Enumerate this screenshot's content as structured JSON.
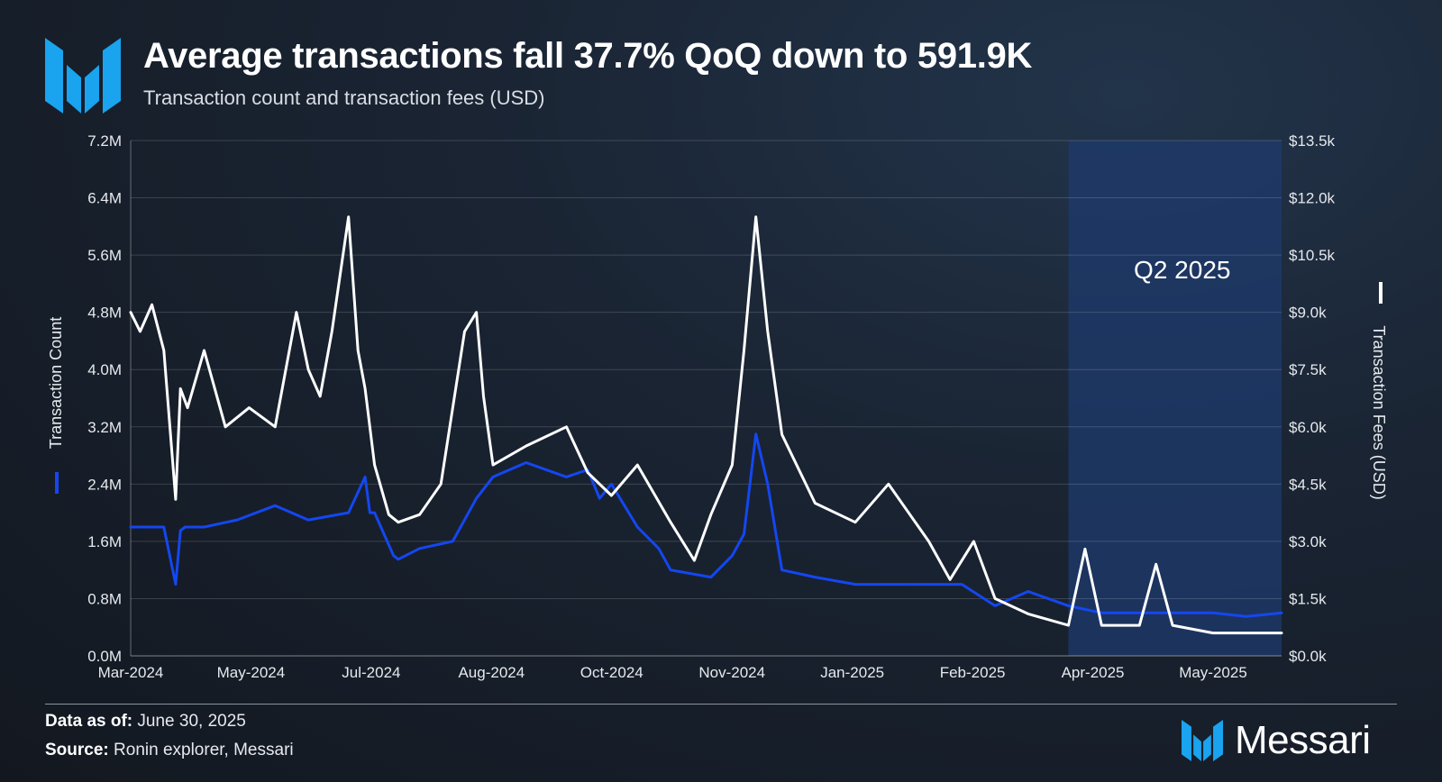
{
  "header": {
    "logo_icon": "messari-m-logo-icon",
    "title": "Average transactions fall 37.7% QoQ down to 591.9K",
    "subtitle": "Transaction count and transaction fees (USD)"
  },
  "footer": {
    "data_as_of_label": "Data as of:",
    "data_as_of_value": "June 30, 2025",
    "source_label": "Source:",
    "source_value": "Ronin explorer, Messari",
    "brand_name": "Messari",
    "brand_icon": "messari-m-logo-icon"
  },
  "colors": {
    "count_series": "#1447f0",
    "fees_series": "#ffffff",
    "brand_blue": "#1aa3ef",
    "highlight": "#1d3b6e"
  },
  "chart_data": {
    "type": "line",
    "title": "Average transactions fall 37.7% QoQ down to 591.9K",
    "subtitle": "Transaction count and transaction fees (USD)",
    "x_ticks": [
      "Mar-2024",
      "May-2024",
      "Jul-2024",
      "Aug-2024",
      "Oct-2024",
      "Nov-2024",
      "Jan-2025",
      "Feb-2025",
      "Apr-2025",
      "May-2025"
    ],
    "x_range": [
      "2024-03-01",
      "2025-06-30"
    ],
    "y_left": {
      "label": "Transaction Count",
      "ticks": [
        "0.0M",
        "0.8M",
        "1.6M",
        "2.4M",
        "3.2M",
        "4.0M",
        "4.8M",
        "5.6M",
        "6.4M",
        "7.2M"
      ],
      "range": [
        0,
        7.2
      ],
      "unit": "M"
    },
    "y_right": {
      "label": "Transaction Fees (USD)",
      "ticks": [
        "$0.0k",
        "$1.5k",
        "$3.0k",
        "$4.5k",
        "$6.0k",
        "$7.5k",
        "$9.0k",
        "$10.5k",
        "$12.0k",
        "$13.5k"
      ],
      "range": [
        0,
        13.5
      ],
      "unit": "$k"
    },
    "grid": true,
    "highlight_region": {
      "label": "Q2 2025",
      "from": "2025-04-01",
      "to": "2025-06-30"
    },
    "series": [
      {
        "name": "Transaction Count",
        "axis": "left",
        "unit": "M",
        "x": [
          "2024-03-01",
          "2024-03-15",
          "2024-03-20",
          "2024-03-22",
          "2024-03-24",
          "2024-04-01",
          "2024-04-15",
          "2024-05-01",
          "2024-05-15",
          "2024-06-01",
          "2024-06-08",
          "2024-06-10",
          "2024-06-12",
          "2024-06-20",
          "2024-06-22",
          "2024-07-01",
          "2024-07-15",
          "2024-07-25",
          "2024-08-01",
          "2024-08-15",
          "2024-09-01",
          "2024-09-10",
          "2024-09-15",
          "2024-09-20",
          "2024-10-01",
          "2024-10-10",
          "2024-10-15",
          "2024-11-01",
          "2024-11-10",
          "2024-11-15",
          "2024-11-20",
          "2024-11-25",
          "2024-12-01",
          "2024-12-15",
          "2025-01-01",
          "2025-01-15",
          "2025-02-01",
          "2025-02-15",
          "2025-03-01",
          "2025-03-15",
          "2025-04-01",
          "2025-04-15",
          "2025-05-01",
          "2025-05-15",
          "2025-06-01",
          "2025-06-15",
          "2025-06-30"
        ],
        "y": [
          1.8,
          1.8,
          1.0,
          1.75,
          1.8,
          1.8,
          1.9,
          2.1,
          1.9,
          2.0,
          2.5,
          2.0,
          2.0,
          1.4,
          1.35,
          1.5,
          1.6,
          2.2,
          2.5,
          2.7,
          2.5,
          2.6,
          2.2,
          2.4,
          1.8,
          1.5,
          1.2,
          1.1,
          1.4,
          1.7,
          3.1,
          2.4,
          1.2,
          1.1,
          1.0,
          1.0,
          1.0,
          1.0,
          0.7,
          0.9,
          0.7,
          0.6,
          0.6,
          0.6,
          0.6,
          0.55,
          0.6
        ]
      },
      {
        "name": "Transaction Fees (USD)",
        "axis": "right",
        "unit": "$k",
        "x": [
          "2024-03-01",
          "2024-03-05",
          "2024-03-10",
          "2024-03-15",
          "2024-03-20",
          "2024-03-22",
          "2024-03-25",
          "2024-04-01",
          "2024-04-10",
          "2024-04-20",
          "2024-05-01",
          "2024-05-10",
          "2024-05-15",
          "2024-05-20",
          "2024-05-25",
          "2024-06-01",
          "2024-06-05",
          "2024-06-08",
          "2024-06-12",
          "2024-06-18",
          "2024-06-22",
          "2024-07-01",
          "2024-07-10",
          "2024-07-20",
          "2024-07-25",
          "2024-07-28",
          "2024-08-01",
          "2024-08-15",
          "2024-09-01",
          "2024-09-10",
          "2024-09-20",
          "2024-10-01",
          "2024-10-15",
          "2024-10-25",
          "2024-11-01",
          "2024-11-10",
          "2024-11-15",
          "2024-11-20",
          "2024-11-25",
          "2024-12-01",
          "2024-12-15",
          "2025-01-01",
          "2025-01-15",
          "2025-02-01",
          "2025-02-10",
          "2025-02-20",
          "2025-03-01",
          "2025-03-15",
          "2025-04-01",
          "2025-04-08",
          "2025-04-15",
          "2025-05-01",
          "2025-05-08",
          "2025-05-15",
          "2025-06-01",
          "2025-06-15",
          "2025-06-30"
        ],
        "y": [
          9.0,
          8.5,
          9.2,
          8.0,
          4.1,
          7.0,
          6.5,
          8.0,
          6.0,
          6.5,
          6.0,
          9.0,
          7.5,
          6.8,
          8.5,
          11.5,
          8.0,
          7.0,
          5.0,
          3.7,
          3.5,
          3.7,
          4.5,
          8.5,
          9.0,
          6.8,
          5.0,
          5.5,
          6.0,
          4.8,
          4.2,
          5.0,
          3.5,
          2.5,
          3.7,
          5.0,
          8.0,
          11.5,
          8.5,
          5.8,
          4.0,
          3.5,
          4.5,
          3.0,
          2.0,
          3.0,
          1.5,
          1.1,
          0.8,
          2.8,
          0.8,
          0.8,
          2.4,
          0.8,
          0.6,
          0.6,
          0.6
        ]
      }
    ]
  }
}
